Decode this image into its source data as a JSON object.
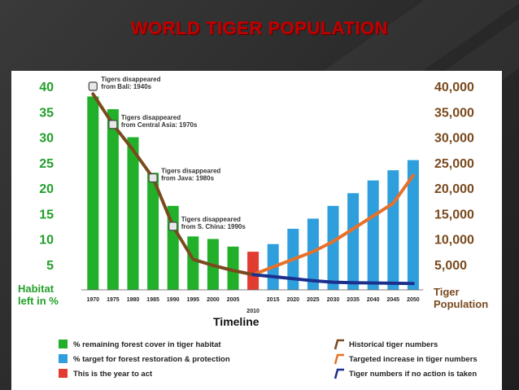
{
  "slide": {
    "title": "WORLD TIGER POPULATION"
  },
  "chart_data": {
    "type": "bar",
    "xlabel": "Timeline",
    "ylabel_left": [
      "Habitat",
      "left in %"
    ],
    "ylabel_right": [
      "Tiger",
      "Population"
    ],
    "ylim_left": [
      0,
      40
    ],
    "ylim_right": [
      0,
      40000
    ],
    "left_ticks": [
      "40",
      "35",
      "30",
      "25",
      "20",
      "15",
      "10",
      "5"
    ],
    "right_ticks": [
      "40,000",
      "35,000",
      "30,000",
      "25,000",
      "20,000",
      "15,000",
      "10,000",
      "5,000"
    ],
    "categories": [
      "1970",
      "1975",
      "1980",
      "1985",
      "1990",
      "1995",
      "2000",
      "2005",
      "2010",
      "2015",
      "2020",
      "2025",
      "2030",
      "2035",
      "2040",
      "2045",
      "2050"
    ],
    "highlight_category": "2010",
    "bar_series": [
      {
        "name": "% remaining forest cover in tiger habitat",
        "color": "#22b02a",
        "values": [
          38,
          35.5,
          30,
          23,
          16.5,
          10.5,
          10,
          8.5,
          null,
          null,
          null,
          null,
          null,
          null,
          null,
          null,
          null
        ]
      },
      {
        "name": "This is the year to act",
        "color": "#e23b2f",
        "values": [
          null,
          null,
          null,
          null,
          null,
          null,
          null,
          null,
          7.5,
          null,
          null,
          null,
          null,
          null,
          null,
          null,
          null
        ]
      },
      {
        "name": "% target for forest restoration & protection",
        "color": "#2e9fdc",
        "values": [
          null,
          null,
          null,
          null,
          null,
          null,
          null,
          null,
          null,
          9,
          12,
          14,
          16.5,
          19,
          21.5,
          23.5,
          25.5
        ]
      }
    ],
    "line_series": [
      {
        "name": "Historical tiger numbers",
        "color": "#7a4a1e",
        "years": [
          "1970",
          "1975",
          "1980",
          "1985",
          "1990",
          "1995",
          "2000",
          "2005",
          "2010"
        ],
        "values": [
          38500,
          32500,
          27500,
          22000,
          12500,
          6000,
          4800,
          3800,
          3000
        ]
      },
      {
        "name": "Targeted increase in tiger numbers",
        "color": "#e8702a",
        "years": [
          "2010",
          "2015",
          "2020",
          "2025",
          "2030",
          "2035",
          "2040",
          "2045",
          "2050"
        ],
        "values": [
          3000,
          4500,
          6000,
          7500,
          9500,
          12000,
          14500,
          17000,
          22500
        ]
      },
      {
        "name": "Tiger numbers if no action is taken",
        "color": "#1c2f8c",
        "years": [
          "2010",
          "2015",
          "2020",
          "2025",
          "2030",
          "2035",
          "2040",
          "2045",
          "2050"
        ],
        "values": [
          3000,
          2600,
          2200,
          1800,
          1500,
          1400,
          1350,
          1300,
          1250
        ]
      }
    ],
    "annotations": [
      {
        "text": [
          "Tigers disappeared",
          "from Bali: 1940s"
        ],
        "year": "1970",
        "value": 40000
      },
      {
        "text": [
          "Tigers disappeared",
          "from Central Asia: 1970s"
        ],
        "year": "1975",
        "value": 32500
      },
      {
        "text": [
          "Tigers disappeared",
          "from Java: 1980s"
        ],
        "year": "1985",
        "value": 22000
      },
      {
        "text": [
          "Tigers disappeared",
          "from S. China: 1990s"
        ],
        "year": "1990",
        "value": 12500
      }
    ],
    "legend_left": [
      {
        "label": "% remaining forest cover in tiger habitat",
        "color": "#22b02a"
      },
      {
        "label": "% target for forest restoration & protection",
        "color": "#2e9fdc"
      },
      {
        "label": "This is the year to act",
        "color": "#e23b2f"
      }
    ],
    "legend_right": [
      {
        "label": "Historical tiger numbers",
        "color": "#7a4a1e"
      },
      {
        "label": "Targeted increase in tiger numbers",
        "color": "#e8702a"
      },
      {
        "label": "Tiger numbers if no action is taken",
        "color": "#1c2f8c"
      }
    ]
  }
}
